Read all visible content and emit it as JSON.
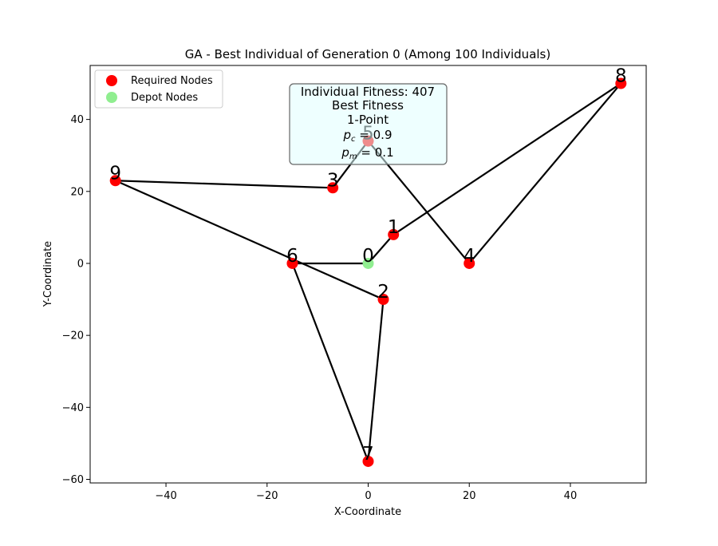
{
  "chart_data": {
    "type": "scatter",
    "title": "GA - Best Individual of Generation 0 (Among 100 Individuals)",
    "xlabel": "X-Coordinate",
    "ylabel": "Y-Coordinate",
    "xlim": [
      -55,
      55
    ],
    "ylim": [
      -61,
      55
    ],
    "x_ticks": [
      -40,
      -20,
      0,
      20,
      40
    ],
    "y_ticks": [
      -60,
      -40,
      -20,
      0,
      20,
      40
    ],
    "x_tick_labels": [
      "−40",
      "−20",
      "0",
      "20",
      "40"
    ],
    "y_tick_labels": [
      "−60",
      "−40",
      "−20",
      "0",
      "20",
      "40"
    ],
    "grid": false,
    "legend_position": "top-left",
    "series": [
      {
        "name": "Required Nodes",
        "color": "#ff0000",
        "points": [
          {
            "label": "1",
            "x": 5,
            "y": 8
          },
          {
            "label": "2",
            "x": 3,
            "y": -10
          },
          {
            "label": "3",
            "x": -7,
            "y": 21
          },
          {
            "label": "4",
            "x": 20,
            "y": 0
          },
          {
            "label": "5",
            "x": 0,
            "y": 34
          },
          {
            "label": "6",
            "x": -15,
            "y": 0
          },
          {
            "label": "7",
            "x": 0,
            "y": -55
          },
          {
            "label": "8",
            "x": 50,
            "y": 50
          },
          {
            "label": "9",
            "x": -50,
            "y": 23
          }
        ]
      },
      {
        "name": "Depot Nodes",
        "color": "#90ee90",
        "points": [
          {
            "label": "0",
            "x": 0,
            "y": 0
          }
        ]
      }
    ],
    "route": [
      "0",
      "1",
      "8",
      "4",
      "5",
      "3",
      "9",
      "2",
      "7",
      "6",
      "0"
    ],
    "route_color": "#000000",
    "annotation": {
      "lines": [
        "Individual Fitness: 407",
        "Best Fitness",
        "1-Point"
      ],
      "pc_symbol": "p",
      "pc_sub": "c",
      "pc_value": " = 0.9",
      "pm_symbol": "p",
      "pm_sub": "m",
      "pm_value": " = 0.1",
      "background": "#e0ffff"
    }
  }
}
